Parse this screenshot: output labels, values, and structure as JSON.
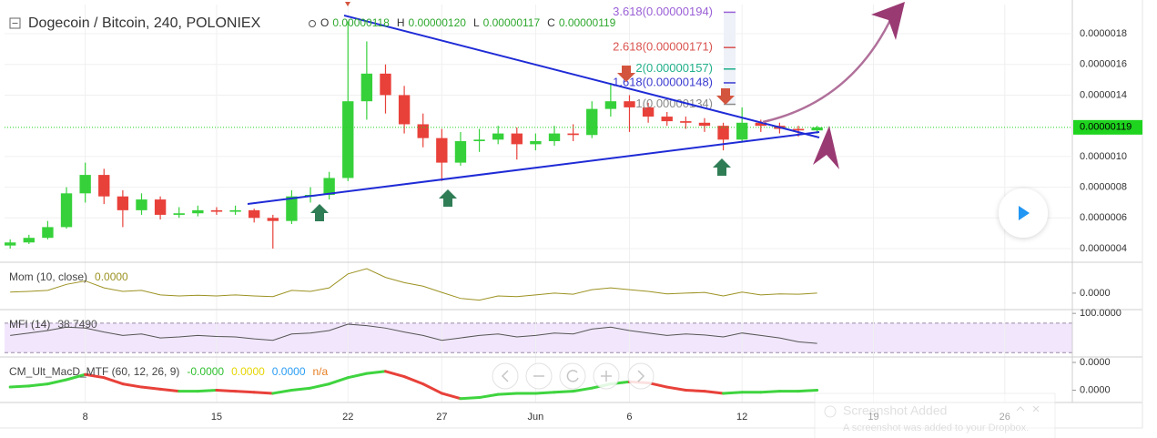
{
  "header": {
    "title": "Dogecoin / Bitcoin, 240, POLONIEX",
    "ohlc": [
      {
        "key": "O",
        "value": "0.00000118"
      },
      {
        "key": "H",
        "value": "0.00000120"
      },
      {
        "key": "L",
        "value": "0.00000117"
      },
      {
        "key": "C",
        "value": "0.00000119"
      }
    ]
  },
  "chart_data": [
    {
      "type": "candlestick",
      "x": [
        4,
        5,
        6,
        7,
        8,
        9,
        10,
        11,
        12,
        13,
        14,
        15,
        16,
        17,
        18,
        19,
        20,
        21,
        22,
        23,
        24,
        25,
        26,
        27,
        28,
        29,
        30,
        31,
        32,
        33,
        34,
        35,
        36,
        37,
        38,
        39,
        40,
        41,
        42,
        43,
        44,
        45,
        46,
        47
      ],
      "open": [
        4.2e-07,
        4.4e-07,
        4.7e-07,
        5.4e-07,
        7.6e-07,
        8.8e-07,
        7.4e-07,
        6.5e-07,
        7.2e-07,
        6.2e-07,
        6.3e-07,
        6.5e-07,
        6.4e-07,
        6.5e-07,
        6e-07,
        5.8e-07,
        7.4e-07,
        7.5e-07,
        8.6e-07,
        1.36e-06,
        1.54e-06,
        1.4e-06,
        1.21e-06,
        1.12e-06,
        9.6e-07,
        1.1e-06,
        1.11e-06,
        1.15e-06,
        1.08e-06,
        1.1e-06,
        1.15e-06,
        1.14e-06,
        1.31e-06,
        1.36e-06,
        1.32e-06,
        1.26e-06,
        1.23e-06,
        1.22e-06,
        1.2e-06,
        1.11e-06,
        1.22e-06,
        1.2e-06,
        1.18e-06,
        1.17e-06
      ],
      "high": [
        4.6e-07,
        4.9e-07,
        5.8e-07,
        8e-07,
        9.6e-07,
        9.2e-07,
        7.8e-07,
        7.6e-07,
        7.4e-07,
        6.7e-07,
        6.8e-07,
        6.7e-07,
        6.8e-07,
        6.6e-07,
        6.2e-07,
        7.8e-07,
        8e-07,
        9e-07,
        1.88e-06,
        1.75e-06,
        1.6e-06,
        1.46e-06,
        1.28e-06,
        1.18e-06,
        1.16e-06,
        1.18e-06,
        1.2e-06,
        1.19e-06,
        1.15e-06,
        1.2e-06,
        1.21e-06,
        1.36e-06,
        1.48e-06,
        1.4e-06,
        1.35e-06,
        1.29e-06,
        1.26e-06,
        1.25e-06,
        1.22e-06,
        1.32e-06,
        1.24e-06,
        1.22e-06,
        1.2e-06,
        1.2e-06
      ],
      "low": [
        4e-07,
        4.3e-07,
        4.6e-07,
        5.3e-07,
        7e-07,
        6.9e-07,
        5.4e-07,
        6.2e-07,
        5.9e-07,
        6e-07,
        6.1e-07,
        6.2e-07,
        6.2e-07,
        5.7e-07,
        4e-07,
        5.6e-07,
        7e-07,
        7.2e-07,
        8.4e-07,
        1.24e-06,
        1.28e-06,
        1.15e-06,
        1.06e-06,
        8.4e-07,
        9.4e-07,
        1.03e-06,
        1.08e-06,
        9.8e-07,
        1.04e-06,
        1.07e-06,
        1.1e-06,
        1.12e-06,
        1.26e-06,
        1.16e-06,
        1.22e-06,
        1.2e-06,
        1.18e-06,
        1.16e-06,
        1.04e-06,
        1.09e-06,
        1.16e-06,
        1.15e-06,
        1.13e-06,
        1.15e-06
      ],
      "close": [
        4.4e-07,
        4.7e-07,
        5.4e-07,
        7.6e-07,
        8.8e-07,
        7.4e-07,
        6.5e-07,
        7.2e-07,
        6.2e-07,
        6.3e-07,
        6.5e-07,
        6.4e-07,
        6.5e-07,
        6e-07,
        5.8e-07,
        7.4e-07,
        7.5e-07,
        8.6e-07,
        1.36e-06,
        1.54e-06,
        1.4e-06,
        1.21e-06,
        1.12e-06,
        9.6e-07,
        1.1e-06,
        1.11e-06,
        1.15e-06,
        1.08e-06,
        1.1e-06,
        1.15e-06,
        1.14e-06,
        1.31e-06,
        1.36e-06,
        1.32e-06,
        1.26e-06,
        1.23e-06,
        1.22e-06,
        1.2e-06,
        1.11e-06,
        1.22e-06,
        1.2e-06,
        1.18e-06,
        1.17e-06,
        1.19e-06
      ],
      "up_color": "#36d13a",
      "down_color": "#e8413a",
      "xlim": [
        3.7,
        60.6
      ],
      "xticks": [
        8,
        15,
        22,
        27,
        {
          "value": 32,
          "label": "Jun"
        },
        {
          "value": 37,
          "label": "6"
        },
        {
          "value": 43,
          "label": "12"
        },
        {
          "value": 50,
          "label": "19"
        },
        {
          "value": 57,
          "label": "26"
        }
      ],
      "ylim": [
        3.11e-07,
        1.99e-06
      ],
      "yticks": [
        {
          "value": 4e-07,
          "label": "0.0000004"
        },
        {
          "value": 6e-07,
          "label": "0.0000006"
        },
        {
          "value": 8e-07,
          "label": "0.0000008"
        },
        {
          "value": 1e-06,
          "label": "0.0000010"
        },
        {
          "value": 1.4e-06,
          "label": "0.0000014"
        },
        {
          "value": 1.6e-06,
          "label": "0.0000016"
        },
        {
          "value": 1.8e-06,
          "label": "0.0000018"
        }
      ],
      "grid": true,
      "last_price": {
        "value": 1.19e-06,
        "label": "0.00000119",
        "color": "#1ed41e"
      },
      "fib_levels": [
        {
          "value": 1.94e-06,
          "label": "3.618(0.00000194)",
          "color": "#9a5fd6"
        },
        {
          "value": 1.71e-06,
          "label": "2.618(0.00000171)",
          "color": "#d9534f"
        },
        {
          "value": 1.57e-06,
          "label": "2(0.00000157)",
          "color": "#20b08a"
        },
        {
          "value": 1.48e-06,
          "label": "1.618(0.00000148)",
          "color": "#3b3bd1"
        },
        {
          "value": 1.34e-06,
          "label": "1(0.00000134)",
          "color": "#8a8a8a"
        }
      ]
    },
    {
      "type": "line",
      "title": "Mom (10, close)",
      "value_text": "0.0000",
      "color": "#9c9222",
      "x": [
        4,
        5,
        6,
        7,
        8,
        9,
        10,
        11,
        12,
        13,
        14,
        15,
        16,
        17,
        18,
        19,
        20,
        21,
        22,
        23,
        24,
        25,
        26,
        27,
        28,
        29,
        30,
        31,
        32,
        33,
        34,
        35,
        36,
        37,
        38,
        39,
        40,
        41,
        42,
        43,
        44,
        45,
        46,
        47
      ],
      "values": [
        3e-08,
        5e-08,
        8e-08,
        2.5e-07,
        3.5e-07,
        1.5e-07,
        5e-08,
        8e-08,
        -5e-08,
        -8e-08,
        -6e-08,
        -8e-08,
        -5e-08,
        -8e-08,
        -1e-07,
        8e-08,
        5e-08,
        1.5e-07,
        5.5e-07,
        7e-07,
        4.5e-07,
        3e-07,
        2e-07,
        2e-08,
        -1.5e-07,
        -2e-07,
        -8e-08,
        -1e-07,
        -5e-08,
        0,
        -3e-08,
        1e-07,
        1.5e-07,
        1e-07,
        5e-08,
        -2e-08,
        0,
        2e-08,
        -8e-08,
        3e-08,
        -5e-08,
        -2e-08,
        -3e-08,
        0
      ],
      "ylim": [
        -4.7e-07,
        8.3e-07
      ],
      "yticks": [
        {
          "value": 0,
          "label": "0.0000"
        }
      ]
    },
    {
      "type": "line",
      "title": "MFI (14)",
      "value_text": "38.7490",
      "color": "#555555",
      "band": [
        20,
        80
      ],
      "band_color": "#f1e6fb",
      "x": [
        4,
        5,
        6,
        7,
        8,
        9,
        10,
        11,
        12,
        13,
        14,
        15,
        16,
        17,
        18,
        19,
        20,
        21,
        22,
        23,
        24,
        25,
        26,
        27,
        28,
        29,
        30,
        31,
        32,
        33,
        34,
        35,
        36,
        37,
        38,
        39,
        40,
        41,
        42,
        43,
        44,
        45,
        46,
        47
      ],
      "values": [
        55,
        60,
        65,
        72,
        70,
        62,
        55,
        58,
        50,
        52,
        55,
        53,
        52,
        48,
        45,
        58,
        60,
        65,
        78,
        75,
        70,
        62,
        55,
        45,
        50,
        55,
        58,
        52,
        55,
        60,
        58,
        68,
        72,
        65,
        60,
        55,
        58,
        56,
        52,
        60,
        55,
        50,
        42,
        38.749
      ],
      "ylim": [
        0,
        104
      ],
      "yticks": [
        {
          "value": 100,
          "label": "100.0000"
        },
        {
          "value": 0,
          "label": "0.0000"
        }
      ]
    },
    {
      "type": "macd",
      "title": "CM_Ult_MacD_MTF (60, 12, 26, 9)",
      "legend": [
        {
          "text": "-0.0000",
          "color": "#2fbf2f"
        },
        {
          "text": "0.0000",
          "color": "#e6d500"
        },
        {
          "text": "0.0000",
          "color": "#2a9df4"
        },
        {
          "text": "n/a",
          "color": "#e67e22"
        }
      ],
      "rise_color": "#3fd43f",
      "fall_color": "#e8413a",
      "x": [
        4,
        5,
        6,
        7,
        8,
        9,
        10,
        11,
        12,
        13,
        14,
        15,
        16,
        17,
        18,
        19,
        20,
        21,
        22,
        23,
        24,
        25,
        26,
        27,
        28,
        29,
        30,
        31,
        32,
        33,
        34,
        35,
        36,
        37,
        38,
        39,
        40,
        41,
        42,
        43,
        44,
        45,
        46,
        47
      ],
      "values": [
        3e-09,
        4e-09,
        6e-09,
        1e-08,
        1.5e-08,
        1.2e-08,
        6e-09,
        3e-09,
        1e-09,
        -1e-09,
        -1e-09,
        0,
        -1e-09,
        -2e-09,
        -3e-09,
        0,
        2e-09,
        6e-09,
        1.2e-08,
        1.6e-08,
        1.8e-08,
        1.3e-08,
        6e-09,
        -3e-09,
        -8e-09,
        -7e-09,
        -4e-09,
        -3e-09,
        -3e-09,
        -2e-09,
        -1e-09,
        2e-09,
        6e-09,
        8e-09,
        7e-09,
        3e-09,
        0,
        -1e-09,
        -3e-09,
        -2e-09,
        -2e-09,
        -1e-09,
        -1e-09,
        0
      ],
      "ylim": [
        -1e-08,
        3e-08
      ],
      "yticks": [
        {
          "value": 0,
          "label": "0.0000"
        }
      ]
    }
  ],
  "notification": {
    "title": "Screenshot Added",
    "message": "A screenshot was added to your Dropbox."
  }
}
